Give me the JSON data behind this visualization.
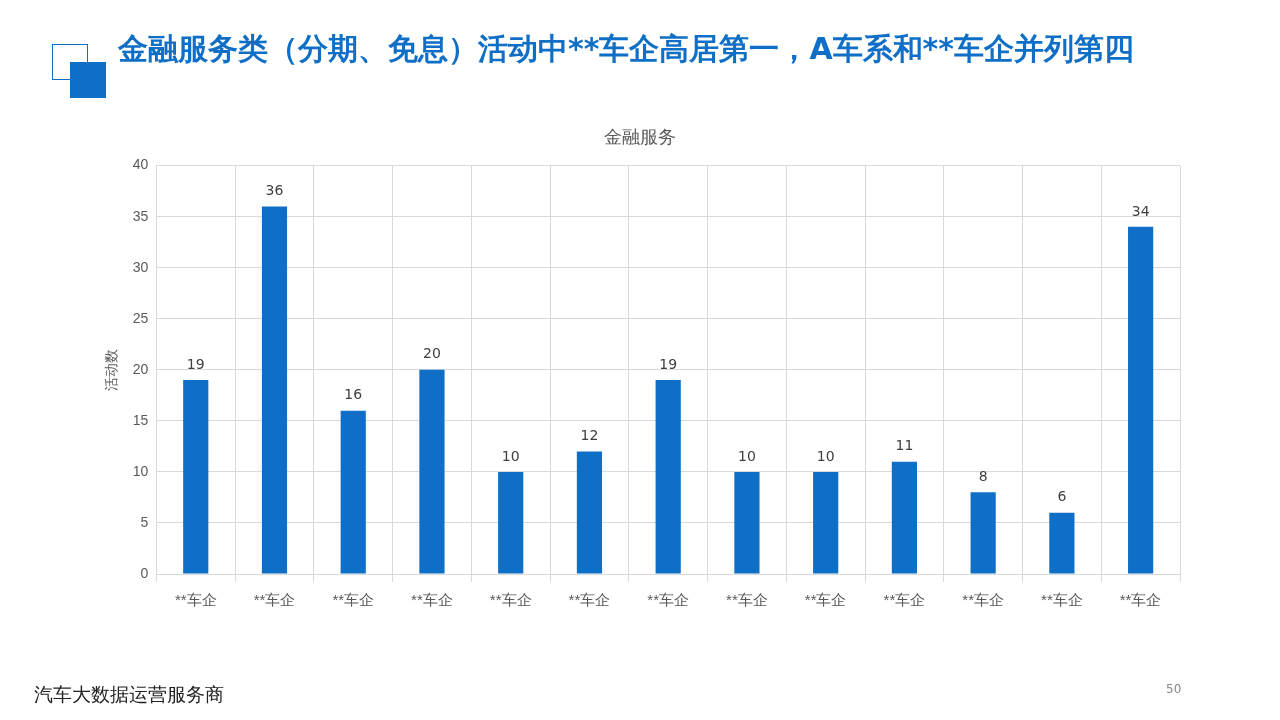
{
  "chart_data": {
    "type": "bar",
    "title": "金融服务",
    "subtitle": "金融服务类（分期、免息）活动中**车企高居第一，A车系和**车企并列第四",
    "ylabel": "活动数",
    "categories": [
      "**车企",
      "**车企",
      "**车企",
      "**车企",
      "**车企",
      "**车企",
      "**车企",
      "**车企",
      "**车企",
      "**车企",
      "**车企",
      "**车企",
      "**车企"
    ],
    "values": [
      19,
      36,
      16,
      20,
      10,
      12,
      19,
      10,
      10,
      11,
      8,
      6,
      34
    ],
    "color": "#0f6fc6",
    "ylim": [
      0,
      40
    ],
    "yticks": [
      0,
      5,
      10,
      15,
      20,
      25,
      30,
      35,
      40
    ],
    "grid": true,
    "legend": false,
    "data_labels": true,
    "annotations": [
      "汽车大数据运营服务商",
      "50"
    ]
  }
}
